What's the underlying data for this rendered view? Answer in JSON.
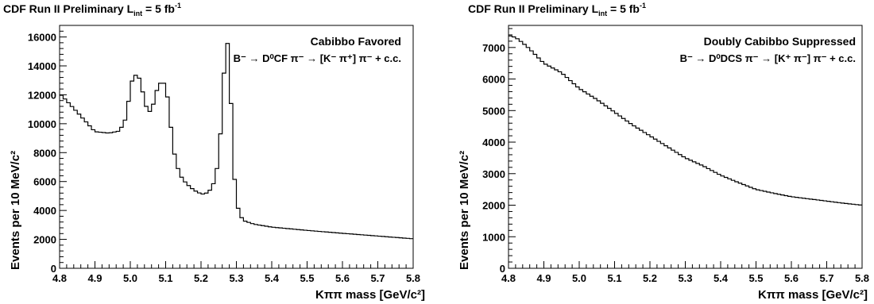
{
  "chart_data": [
    {
      "type": "line",
      "header": {
        "pre": "CDF Run II Preliminary L",
        "sub": "int",
        "post": " = 5 fb",
        "sup": "-1"
      },
      "label": {
        "title": "Cabibbo Favored",
        "decay": "B⁻ → D⁰CF π⁻ → [K⁻ π⁺] π⁻ + c.c."
      },
      "xlabel": "Kππ mass [GeV/c²]",
      "ylabel": "Events per 10 MeV/c²",
      "xlim": [
        4.8,
        5.8
      ],
      "ylim": [
        0,
        16800
      ],
      "x_ticks": [
        "4.8",
        "4.9",
        "5.0",
        "5.1",
        "5.2",
        "5.3",
        "5.4",
        "5.5",
        "5.6",
        "5.7",
        "5.8"
      ],
      "y_ticks": [
        0,
        2000,
        4000,
        6000,
        8000,
        10000,
        12000,
        14000,
        16000
      ],
      "x": [
        4.8,
        4.85,
        4.9,
        4.94,
        4.97,
        4.99,
        5.0,
        5.01,
        5.02,
        5.03,
        5.04,
        5.05,
        5.06,
        5.07,
        5.08,
        5.09,
        5.1,
        5.11,
        5.12,
        5.13,
        5.14,
        5.15,
        5.17,
        5.19,
        5.21,
        5.23,
        5.24,
        5.25,
        5.26,
        5.27,
        5.28,
        5.29,
        5.3,
        5.31,
        5.32,
        5.35,
        5.4,
        5.5,
        5.6,
        5.7,
        5.8
      ],
      "values": [
        12100,
        10800,
        9450,
        9350,
        9500,
        10500,
        12600,
        13300,
        13400,
        12900,
        11500,
        10900,
        10800,
        11900,
        12700,
        12900,
        12700,
        11000,
        8500,
        7300,
        6500,
        6100,
        5600,
        5250,
        5100,
        5500,
        6200,
        7600,
        11000,
        16000,
        15100,
        7700,
        4600,
        3700,
        3300,
        3050,
        2850,
        2620,
        2420,
        2230,
        2040
      ]
    },
    {
      "type": "line",
      "header": {
        "pre": "CDF Run II Preliminary L",
        "sub": "int",
        "post": " = 5 fb",
        "sup": "-1"
      },
      "label": {
        "title": "Doubly Cabibbo Suppressed",
        "decay": "B⁻ → D⁰DCS π⁻ → [K⁺ π⁻] π⁻ + c.c."
      },
      "xlabel": "Kππ mass [GeV/c²]",
      "ylabel": "Events per 10 MeV/c²",
      "xlim": [
        4.8,
        5.8
      ],
      "ylim": [
        0,
        7700
      ],
      "x_ticks": [
        "4.8",
        "4.9",
        "5.0",
        "5.1",
        "5.2",
        "5.3",
        "5.4",
        "5.5",
        "5.6",
        "5.7",
        "5.8"
      ],
      "y_ticks": [
        0,
        1000,
        2000,
        3000,
        4000,
        5000,
        6000,
        7000
      ],
      "x": [
        4.8,
        4.82,
        4.84,
        4.86,
        4.9,
        4.95,
        5.0,
        5.05,
        5.1,
        5.15,
        5.2,
        5.25,
        5.3,
        5.35,
        5.4,
        5.45,
        5.5,
        5.55,
        5.6,
        5.65,
        5.7,
        5.75,
        5.8
      ],
      "values": [
        7380,
        7320,
        7150,
        6950,
        6500,
        6200,
        5700,
        5350,
        4950,
        4550,
        4200,
        3850,
        3500,
        3250,
        2950,
        2720,
        2500,
        2380,
        2270,
        2200,
        2130,
        2060,
        2000
      ]
    }
  ]
}
